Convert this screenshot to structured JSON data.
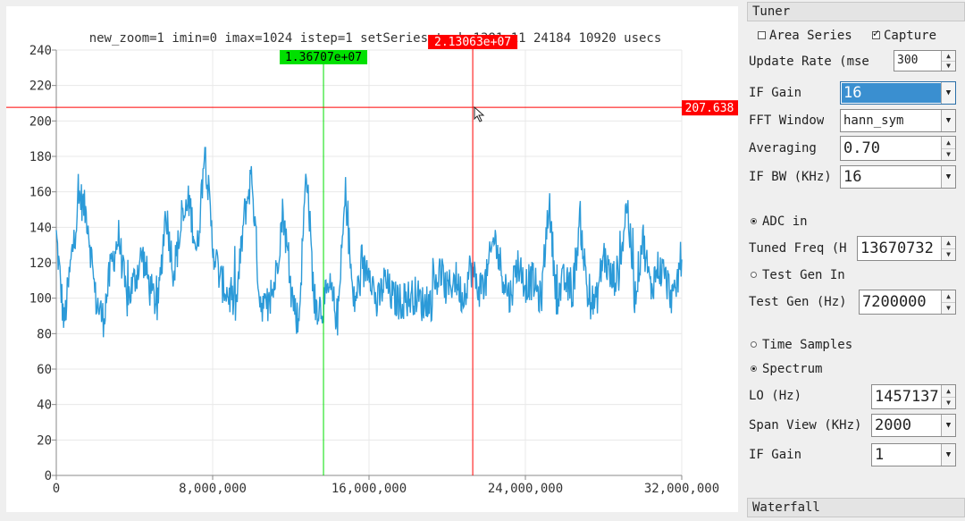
{
  "chart": {
    "title": "new_zoom=1 imin=0 imax=1024 istep=1 setSeries took 1381 11 24184 10920 usecs",
    "y_ticks": [
      "240",
      "220",
      "200",
      "180",
      "160",
      "140",
      "120",
      "100",
      "80",
      "60",
      "40",
      "20",
      "0"
    ],
    "x_ticks": [
      "0",
      "8,000,000",
      "16,000,000",
      "24,000,000",
      "32,000,000"
    ],
    "green_marker": "1.36707e+07",
    "red_marker": "2.13063e+07",
    "h_marker": "207.638",
    "colors": {
      "series": "#2b9ad8",
      "green": "#00e000",
      "red": "#ff0000",
      "grid": "#e8e8e8"
    }
  },
  "chart_data": {
    "type": "line",
    "title": "new_zoom=1 imin=0 imax=1024 istep=1 setSeries took 1381 11 24184 10920 usecs",
    "xlabel": "",
    "ylabel": "",
    "xlim": [
      0,
      32000000
    ],
    "ylim": [
      0,
      240
    ],
    "grid": true,
    "x_tick_labels": [
      "0",
      "8,000,000",
      "16,000,000",
      "24,000,000",
      "32,000,000"
    ],
    "y_tick_labels": [
      "0",
      "20",
      "40",
      "60",
      "80",
      "100",
      "120",
      "140",
      "160",
      "180",
      "200",
      "220",
      "240"
    ],
    "vertical_markers": [
      {
        "x": 13670700,
        "label": "1.36707e+07",
        "color": "#00e000"
      },
      {
        "x": 21306300,
        "label": "2.13063e+07",
        "color": "#ff0000"
      }
    ],
    "horizontal_markers": [
      {
        "y": 207.638,
        "label": "207.638",
        "color": "#ff0000"
      }
    ],
    "series": [
      {
        "x": [
          0,
          400000,
          800000,
          1200000,
          1600000,
          2000000,
          2400000,
          2800000,
          3200000,
          3600000,
          4000000,
          4400000,
          4800000,
          5200000,
          5600000,
          6000000,
          6400000,
          6800000,
          7200000,
          7600000,
          8000000,
          8400000,
          8800000,
          9200000,
          9600000,
          10000000,
          10400000,
          10800000,
          11200000,
          11600000,
          12000000,
          12400000,
          12800000,
          13200000,
          13600000,
          14000000,
          14400000,
          14800000,
          15200000,
          15600000,
          16000000,
          16400000,
          16800000,
          17200000,
          17600000,
          18000000,
          18400000,
          18800000,
          19200000,
          19600000,
          20000000,
          20400000,
          20800000,
          21200000,
          21600000,
          22000000,
          22400000,
          22800000,
          23200000,
          23600000,
          24000000,
          24400000,
          24800000,
          25200000,
          25600000,
          26000000,
          26400000,
          26800000,
          27200000,
          27600000,
          28000000,
          28400000,
          28800000,
          29200000,
          29600000,
          30000000,
          30400000,
          30800000,
          31200000,
          31600000,
          32000000
        ],
        "values": [
          135,
          85,
          125,
          158,
          145,
          100,
          88,
          118,
          135,
          98,
          110,
          125,
          105,
          95,
          150,
          115,
          140,
          155,
          125,
          185,
          130,
          110,
          102,
          95,
          145,
          170,
          100,
          92,
          110,
          150,
          105,
          85,
          175,
          96,
          95,
          105,
          88,
          160,
          96,
          112,
          120,
          95,
          110,
          100,
          98,
          100,
          102,
          96,
          98,
          115,
          104,
          112,
          100,
          118,
          105,
          110,
          135,
          115,
          100,
          120,
          108,
          110,
          98,
          155,
          100,
          110,
          102,
          145,
          100,
          96,
          125,
          110,
          115,
          155,
          100,
          135,
          105,
          118,
          110,
          98,
          125
        ]
      }
    ]
  },
  "panel": {
    "tuner_header": "Tuner",
    "area_series": "Area Series",
    "capture": "Capture",
    "update_rate_label": "Update Rate (mse",
    "update_rate_value": "300",
    "if_gain_label": "IF Gain",
    "if_gain_value": "16",
    "fft_window_label": "FFT Window",
    "fft_window_value": "hann_sym",
    "averaging_label": "Averaging",
    "averaging_value": "0.70",
    "if_bw_label": "IF BW (KHz)",
    "if_bw_value": "16",
    "adc_in": "ADC in",
    "tuned_freq_label": "Tuned Freq (H",
    "tuned_freq_value": "13670732",
    "test_gen_in": "Test Gen In",
    "test_gen_label": "Test Gen (Hz)",
    "test_gen_value": "7200000",
    "time_samples": "Time Samples",
    "spectrum": "Spectrum",
    "lo_label": "LO (Hz)",
    "lo_value": "1457137",
    "span_view_label": "Span View (KHz)",
    "span_view_value": "2000",
    "if_gain2_label": "IF Gain",
    "if_gain2_value": "1",
    "waterfall_header": "Waterfall",
    "selection_color": "#3a8fd0"
  }
}
